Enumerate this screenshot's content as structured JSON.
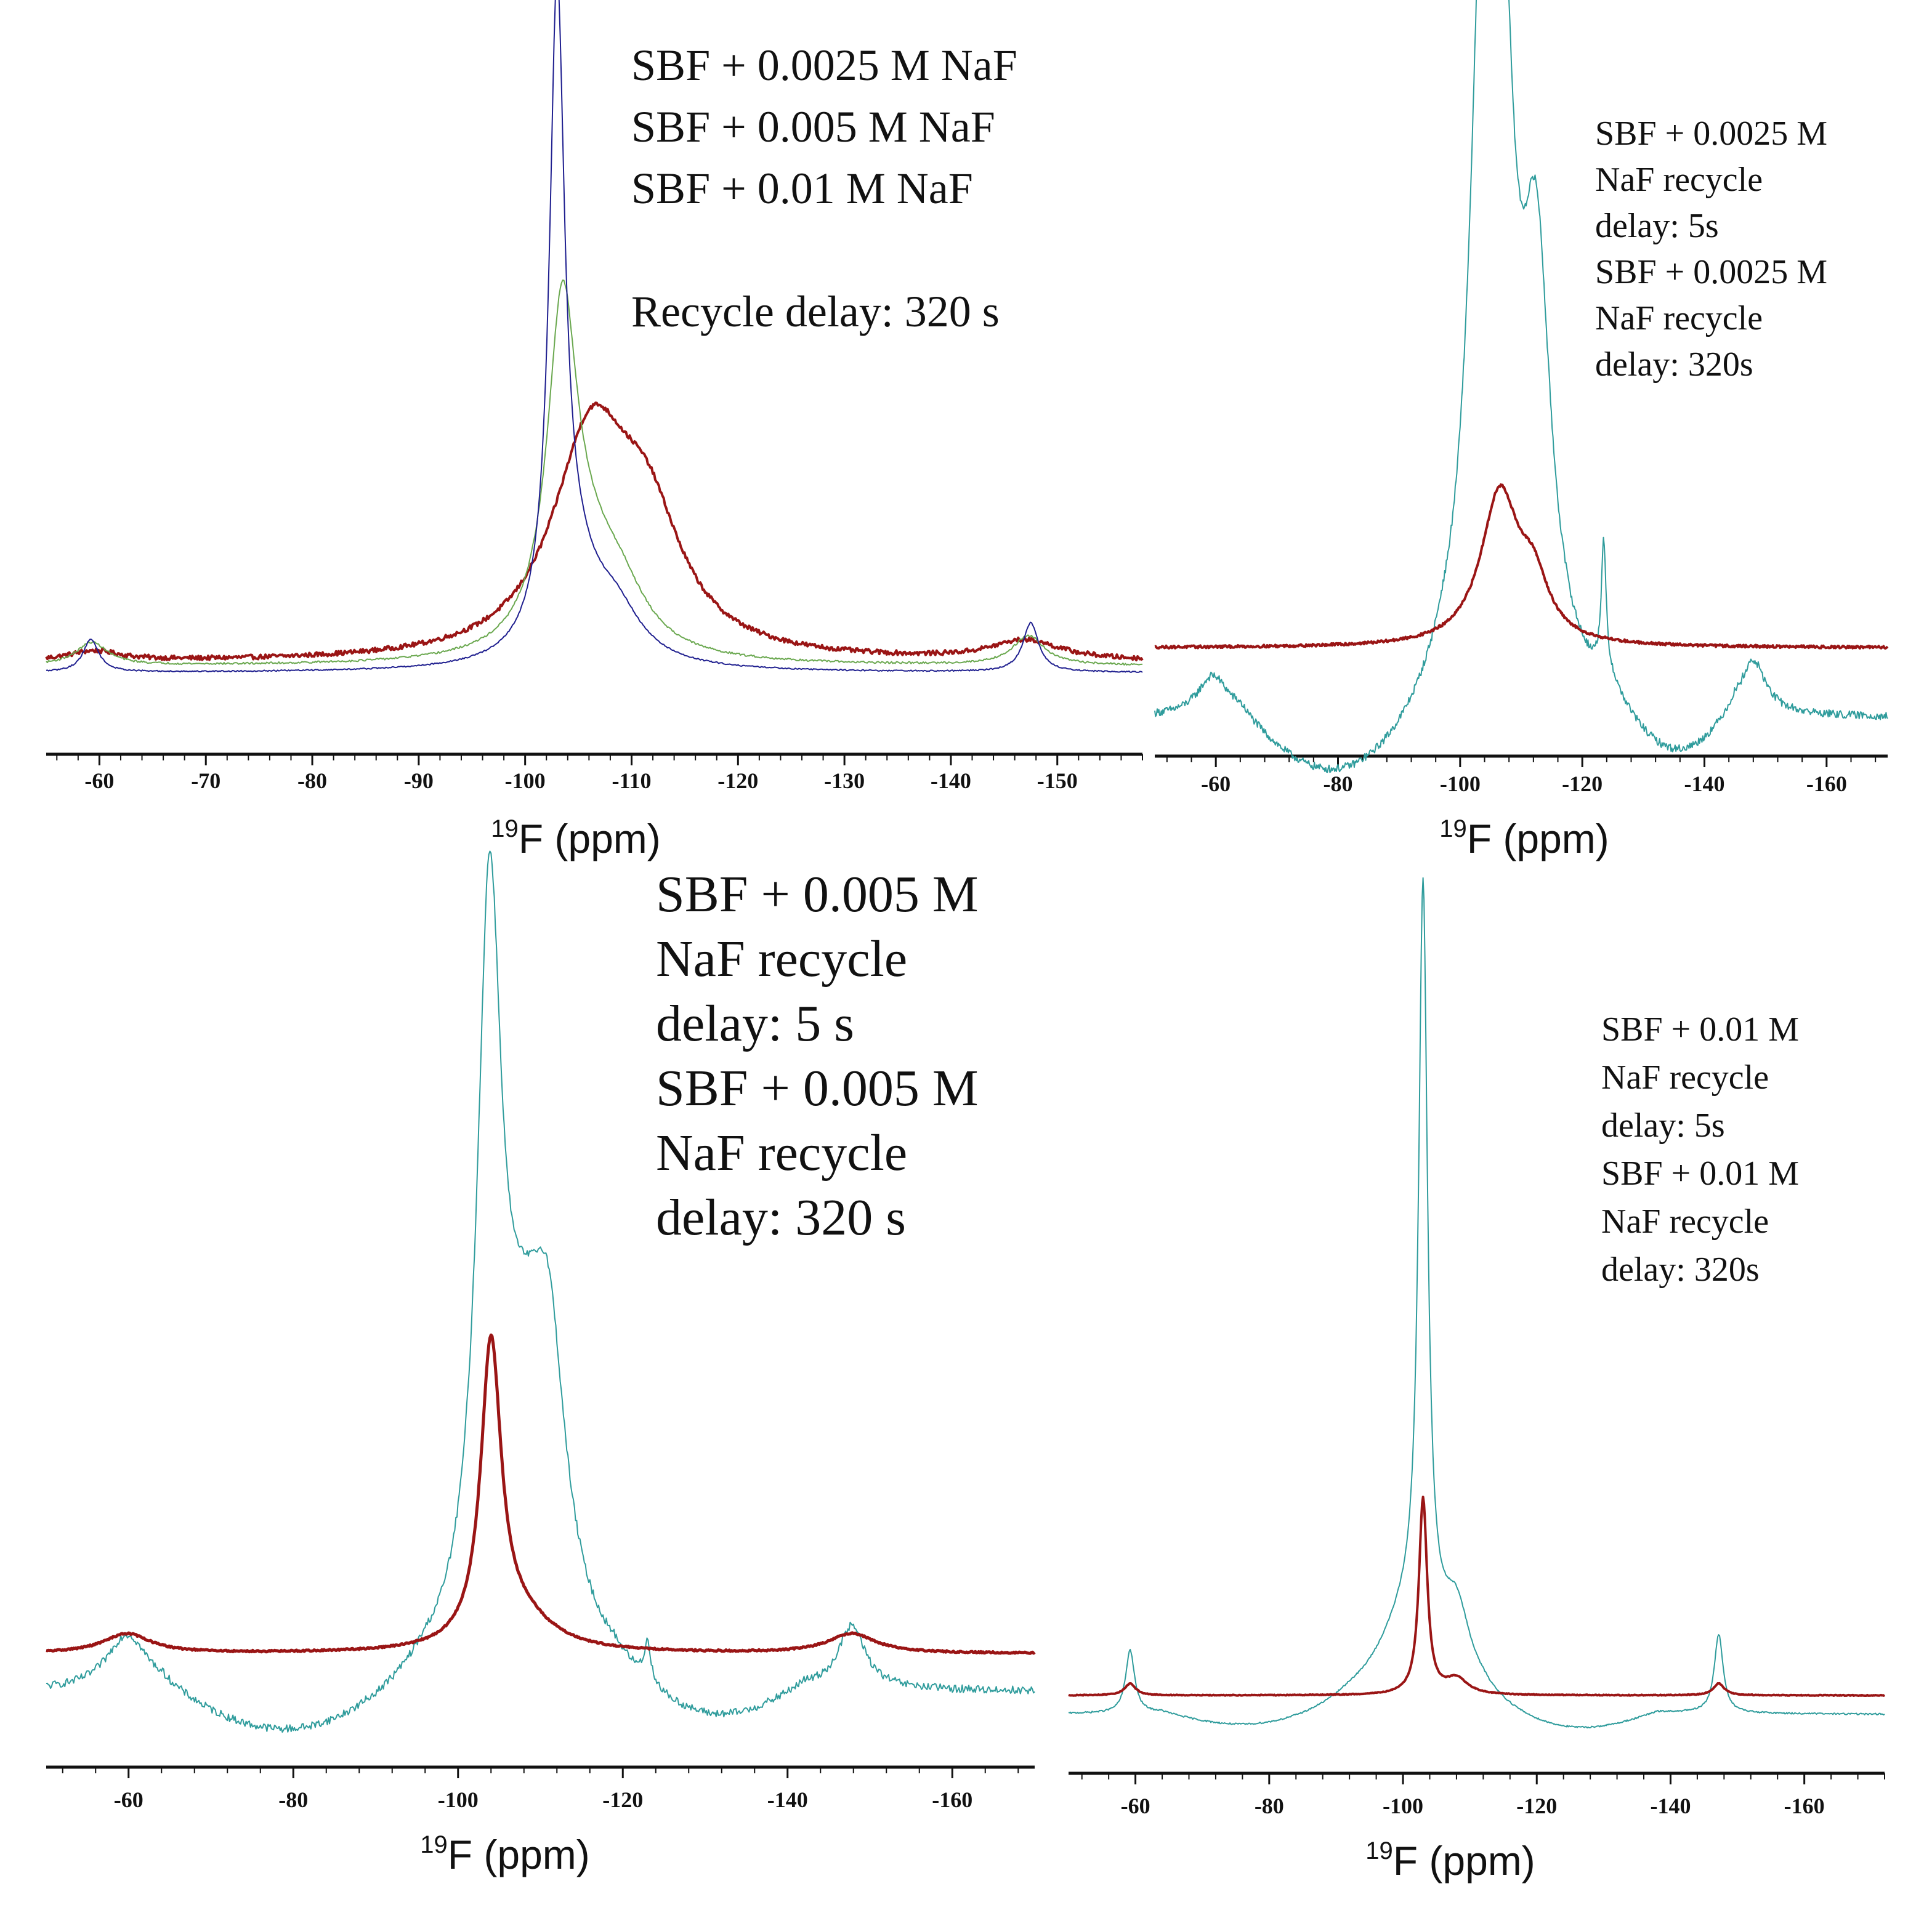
{
  "colors": {
    "dark_red": "#9a1515",
    "green": "#6aa84f",
    "navy": "#1f1f8f",
    "teal": "#2f9c9c",
    "legend_blue": "#3a5a9a",
    "legend_lightblue": "#2e75b6",
    "black": "#111111"
  },
  "chart_data": [
    {
      "id": "panel-a",
      "type": "line",
      "title": "",
      "xlabel_prefix": "19",
      "xlabel_main": "F (ppm)",
      "ylabel": "",
      "xlim": [
        -55,
        -158
      ],
      "xticks": [
        -60,
        -70,
        -80,
        -90,
        -100,
        -110,
        -120,
        -130,
        -140,
        -150
      ],
      "tick_labels": [
        "-60",
        "-70",
        "-80",
        "-90",
        "-100",
        "-110",
        "-120",
        "-130",
        "-140",
        "-150"
      ],
      "legend": [
        {
          "text": "SBF + 0.0025 M NaF",
          "color": "#9a1515"
        },
        {
          "text": "SBF + 0.005 M NaF",
          "color": "#6aa84f"
        },
        {
          "text": "SBF + 0.01 M NaF",
          "color": "#2e75b6"
        },
        {
          "text": "Recycle delay: 320 s",
          "color": "#111111"
        }
      ],
      "series": [
        {
          "name": "SBF + 0.0025 M NaF",
          "color": "#9a1515",
          "width": 4,
          "baseline": 0.055,
          "noise": 0.007,
          "peaks": [
            {
              "pos": -59.5,
              "amp": 0.015,
              "w": 3
            },
            {
              "pos": -106.2,
              "amp": 0.33,
              "w": 4.5
            },
            {
              "pos": -111.5,
              "amp": 0.17,
              "w": 4
            },
            {
              "pos": -147,
              "amp": 0.03,
              "w": 4
            }
          ]
        },
        {
          "name": "SBF + 0.005 M NaF",
          "color": "#6aa84f",
          "width": 2,
          "baseline": 0.05,
          "noise": 0.003,
          "peaks": [
            {
              "pos": -59.3,
              "amp": 0.035,
              "w": 1.8
            },
            {
              "pos": -103.5,
              "amp": 0.49,
              "w": 1.7
            },
            {
              "pos": -106,
              "amp": 0.12,
              "w": 4
            },
            {
              "pos": -109,
              "amp": 0.06,
              "w": 3
            },
            {
              "pos": -147.3,
              "amp": 0.045,
              "w": 1.8
            }
          ]
        },
        {
          "name": "SBF + 0.01 M NaF",
          "color": "#1f1f8f",
          "width": 2,
          "baseline": 0.04,
          "noise": 0.002,
          "peaks": [
            {
              "pos": -59.2,
              "amp": 0.05,
              "w": 0.9
            },
            {
              "pos": -103,
              "amp": 0.95,
              "w": 0.85
            },
            {
              "pos": -104.5,
              "amp": 0.13,
              "w": 3
            },
            {
              "pos": -108.5,
              "amp": 0.07,
              "w": 3
            },
            {
              "pos": -147.5,
              "amp": 0.075,
              "w": 0.9
            }
          ]
        }
      ]
    },
    {
      "id": "panel-b",
      "type": "line",
      "title": "",
      "xlabel_prefix": "19",
      "xlabel_main": "F (ppm)",
      "ylabel": "",
      "xlim": [
        -50,
        -170
      ],
      "xticks": [
        -60,
        -80,
        -100,
        -120,
        -140,
        -160
      ],
      "tick_labels": [
        "-60",
        "-80",
        "-100",
        "-120",
        "-140",
        "-160"
      ],
      "legend": [
        {
          "text": "SBF + 0.0025 M",
          "color": "#9a1515"
        },
        {
          "text": "NaF recycle",
          "color": "#9a1515"
        },
        {
          "text": "delay: 5s",
          "color": "#9a1515"
        },
        {
          "text": "SBF + 0.0025 M",
          "color": "#3a5a9a"
        },
        {
          "text": "NaF recycle",
          "color": "#3a5a9a"
        },
        {
          "text": "delay: 320s",
          "color": "#3a5a9a"
        }
      ],
      "series": [
        {
          "name": "SBF + 0.0025 M NaF recycle delay: 320s",
          "color": "#2f9c9c",
          "width": 2,
          "baseline": 0.02,
          "noise": 0.012,
          "dips": [
            {
              "start": -64,
              "end": -97,
              "depth": 0.1
            },
            {
              "start": -125,
              "end": -145,
              "depth": 0.07
            }
          ],
          "peaks": [
            {
              "pos": -59.5,
              "amp": 0.06,
              "w": 3
            },
            {
              "pos": -103.8,
              "amp": 0.93,
              "w": 2.6
            },
            {
              "pos": -106.5,
              "amp": 0.9,
              "w": 2.6
            },
            {
              "pos": -112.5,
              "amp": 0.6,
              "w": 2.8
            },
            {
              "pos": -123.5,
              "amp": 0.2,
              "w": 0.5
            },
            {
              "pos": -148,
              "amp": 0.08,
              "w": 2.5
            }
          ]
        },
        {
          "name": "SBF + 0.0025 M NaF recycle delay: 5s",
          "color": "#9a1515",
          "width": 4,
          "baseline": 0.13,
          "noise": 0.004,
          "peaks": [
            {
              "pos": -106.5,
              "amp": 0.23,
              "w": 3.8
            },
            {
              "pos": -112,
              "amp": 0.08,
              "w": 3
            }
          ]
        }
      ]
    },
    {
      "id": "panel-c",
      "type": "line",
      "title": "",
      "xlabel_prefix": "19",
      "xlabel_main": "F (ppm)",
      "ylabel": "",
      "xlim": [
        -50,
        -170
      ],
      "xticks": [
        -60,
        -80,
        -100,
        -120,
        -140,
        -160
      ],
      "tick_labels": [
        "-60",
        "-80",
        "-100",
        "-120",
        "-140",
        "-160"
      ],
      "legend": [
        {
          "text": "SBF + 0.005 M",
          "color": "#9a1515"
        },
        {
          "text": "NaF recycle",
          "color": "#9a1515"
        },
        {
          "text": "delay: 5 s",
          "color": "#9a1515"
        },
        {
          "text": "SBF + 0.005 M",
          "color": "#3a5a9a"
        },
        {
          "text": "NaF recycle",
          "color": "#3a5a9a"
        },
        {
          "text": "delay: 320 s",
          "color": "#3a5a9a"
        }
      ],
      "series": [
        {
          "name": "SBF + 0.005 M NaF recycle delay: 320 s",
          "color": "#2f9c9c",
          "width": 2,
          "baseline": 0.04,
          "noise": 0.01,
          "dips": [
            {
              "start": -64,
              "end": -96,
              "depth": 0.06
            },
            {
              "start": -119,
              "end": -142,
              "depth": 0.045
            }
          ],
          "peaks": [
            {
              "pos": -59.8,
              "amp": 0.07,
              "w": 3
            },
            {
              "pos": -103.8,
              "amp": 0.9,
              "w": 1.8
            },
            {
              "pos": -108,
              "amp": 0.3,
              "w": 4
            },
            {
              "pos": -111,
              "amp": 0.3,
              "w": 2.5
            },
            {
              "pos": -123,
              "amp": 0.05,
              "w": 0.5
            },
            {
              "pos": -147.8,
              "amp": 0.08,
              "w": 2
            }
          ]
        },
        {
          "name": "SBF + 0.005 M NaF recycle delay: 5 s",
          "color": "#9a1515",
          "width": 5,
          "baseline": 0.09,
          "noise": 0.002,
          "peaks": [
            {
              "pos": -59.8,
              "amp": 0.025,
              "w": 3.5
            },
            {
              "pos": -104,
              "amp": 0.38,
              "w": 1.5
            },
            {
              "pos": -107.5,
              "amp": 0.04,
              "w": 5
            },
            {
              "pos": -147.8,
              "amp": 0.025,
              "w": 3.5
            }
          ]
        }
      ]
    },
    {
      "id": "panel-d",
      "type": "line",
      "title": "",
      "xlabel_prefix": "19",
      "xlabel_main": "F (ppm)",
      "ylabel": "",
      "xlim": [
        -50,
        -172
      ],
      "xticks": [
        -60,
        -80,
        -100,
        -120,
        -140,
        -160
      ],
      "tick_labels": [
        "-60",
        "-80",
        "-100",
        "-120",
        "-140",
        "-160"
      ],
      "legend": [
        {
          "text": "SBF + 0.01 M",
          "color": "#9a1515"
        },
        {
          "text": "NaF recycle",
          "color": "#9a1515"
        },
        {
          "text": "delay: 5s",
          "color": "#9a1515"
        },
        {
          "text": "SBF + 0.01 M",
          "color": "#3a5a9a"
        },
        {
          "text": "NaF recycle",
          "color": "#3a5a9a"
        },
        {
          "text": "delay: 320s",
          "color": "#3a5a9a"
        }
      ],
      "series": [
        {
          "name": "SBF + 0.01 M NaF recycle delay: 320s",
          "color": "#2f9c9c",
          "width": 2,
          "baseline": 0.035,
          "noise": 0.002,
          "dips": [
            {
              "start": -64,
              "end": -92,
              "depth": 0.02
            },
            {
              "start": -112,
              "end": -138,
              "depth": 0.025
            }
          ],
          "peaks": [
            {
              "pos": -59.2,
              "amp": 0.08,
              "w": 0.8
            },
            {
              "pos": -103,
              "amp": 0.94,
              "w": 0.8
            },
            {
              "pos": -101,
              "amp": 0.12,
              "w": 6
            },
            {
              "pos": -108,
              "amp": 0.09,
              "w": 2.5
            },
            {
              "pos": -147.2,
              "amp": 0.1,
              "w": 0.8
            }
          ]
        },
        {
          "name": "SBF + 0.01 M NaF recycle delay: 5s",
          "color": "#9a1515",
          "width": 4,
          "baseline": 0.06,
          "noise": 0.001,
          "peaks": [
            {
              "pos": -59.2,
              "amp": 0.015,
              "w": 1
            },
            {
              "pos": -103,
              "amp": 0.25,
              "w": 0.75
            },
            {
              "pos": -108,
              "amp": 0.02,
              "w": 2
            },
            {
              "pos": -147.2,
              "amp": 0.015,
              "w": 1
            }
          ]
        }
      ]
    }
  ]
}
